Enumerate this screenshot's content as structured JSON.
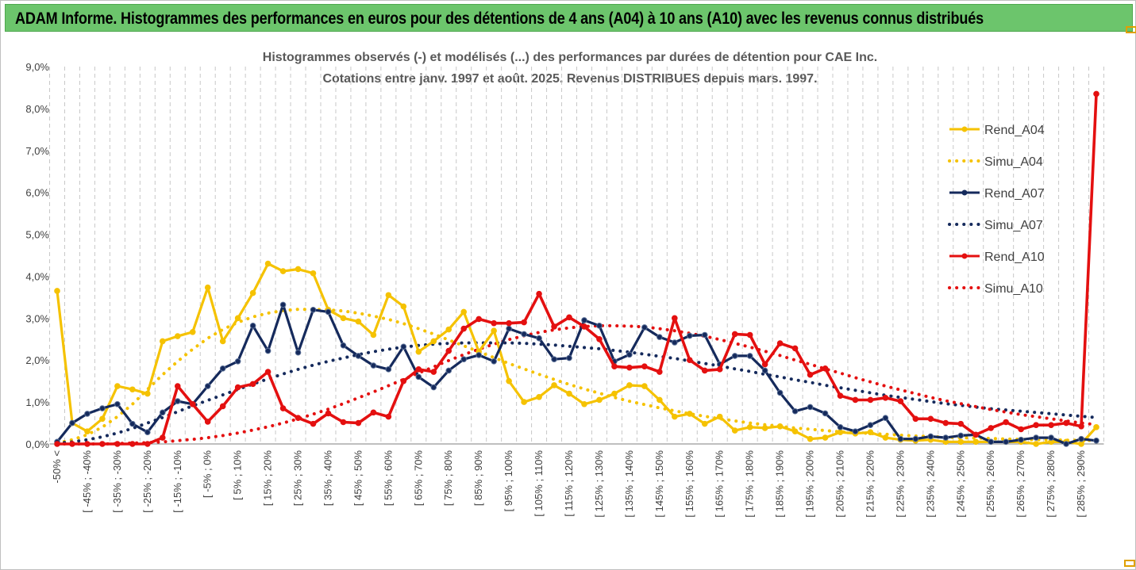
{
  "banner": {
    "title": "ADAM Informe. Histogrammes des performances en euros pour des détentions de 4 ans (A04) à 10 ans (A10) avec les revenus connus distribués"
  },
  "chart_data": {
    "type": "line",
    "title": "Histogrammes observés (-) et modélisés (...) des performances par durées de détention pour CAE Inc.",
    "subtitle": "Cotations entre janv. 1997 et août. 2025. Revenus DISTRIBUES depuis mars. 1997.",
    "y_ticks": [
      "0,0%",
      "1,0%",
      "2,0%",
      "3,0%",
      "4,0%",
      "5,0%",
      "6,0%",
      "7,0%",
      "8,0%",
      "9,0%"
    ],
    "ylim": [
      0,
      9
    ],
    "y_unit": "%",
    "grid": "vertical dashed",
    "legend_position": "right",
    "x_tick_labels": [
      "-50% <",
      "[ -45% ; -40%",
      "[ -35% ; -30%",
      "[ -25% ; -20%",
      "[ -15% ; -10%",
      "[ -5% ; 0%",
      "[ 5% ; 10%",
      "[ 15% ; 20%",
      "[ 25% ; 30%",
      "[ 35% ; 40%",
      "[ 45% ; 50%",
      "[ 55% ; 60%",
      "[ 65% ; 70%",
      "[ 75% ; 80%",
      "[ 85% ; 90%",
      "[ 95% ; 100%",
      "[ 105% ; 110%",
      "[ 115% ; 120%",
      "[ 125% ; 130%",
      "[ 135% ; 140%",
      "[ 145% ; 150%",
      "[ 155% ; 160%",
      "[ 165% ; 170%",
      "[ 175% ; 180%",
      "[ 185% ; 190%",
      "[ 195% ; 200%",
      "[ 205% ; 210%",
      "[ 215% ; 220%",
      "[ 225% ; 230%",
      "[ 235% ; 240%",
      "[ 245% ; 250%",
      "[ 255% ; 260%",
      "[ 265% ; 270%",
      "[ 275% ; 280%",
      "[ 285% ; 290%"
    ],
    "n_categories": 70,
    "series": [
      {
        "name": "Rend_A04",
        "color": "#f5c200",
        "style": "solid",
        "markers": true,
        "values": [
          3.65,
          0.5,
          0.3,
          0.6,
          1.38,
          1.3,
          1.2,
          2.45,
          2.57,
          2.67,
          3.73,
          2.45,
          3.0,
          3.6,
          4.3,
          4.12,
          4.17,
          4.07,
          3.2,
          3.0,
          2.92,
          2.6,
          3.55,
          3.28,
          2.2,
          2.45,
          2.73,
          3.15,
          2.2,
          2.7,
          1.5,
          1.0,
          1.12,
          1.4,
          1.2,
          0.95,
          1.05,
          1.2,
          1.4,
          1.38,
          1.05,
          0.65,
          0.72,
          0.48,
          0.65,
          0.32,
          0.4,
          0.38,
          0.42,
          0.3,
          0.12,
          0.15,
          0.28,
          0.25,
          0.28,
          0.15,
          0.1,
          0.08,
          0.1,
          0.05,
          0.05,
          0.05,
          0.05,
          0.05,
          0.05,
          0.0,
          0.05,
          0.05,
          0.0,
          0.4
        ]
      },
      {
        "name": "Simu_A04",
        "color": "#f5c200",
        "style": "dotted",
        "markers": false,
        "values": [
          0.02,
          0.1,
          0.22,
          0.4,
          0.65,
          0.95,
          1.3,
          1.65,
          1.97,
          2.26,
          2.52,
          2.73,
          2.9,
          3.03,
          3.12,
          3.18,
          3.21,
          3.21,
          3.2,
          3.17,
          3.12,
          3.05,
          2.97,
          2.87,
          2.75,
          2.62,
          2.48,
          2.34,
          2.2,
          2.06,
          1.92,
          1.79,
          1.66,
          1.54,
          1.42,
          1.31,
          1.21,
          1.11,
          1.02,
          0.94,
          0.86,
          0.79,
          0.72,
          0.66,
          0.6,
          0.55,
          0.5,
          0.46,
          0.42,
          0.38,
          0.35,
          0.32,
          0.29,
          0.27,
          0.25,
          0.23,
          0.21,
          0.19,
          0.18,
          0.16,
          0.15,
          0.14,
          0.13,
          0.12,
          0.11,
          0.1,
          0.1,
          0.09,
          0.09,
          0.08
        ]
      },
      {
        "name": "Rend_A07",
        "color": "#152a5c",
        "style": "solid",
        "markers": true,
        "values": [
          0.05,
          0.5,
          0.72,
          0.85,
          0.95,
          0.48,
          0.28,
          0.75,
          1.02,
          0.95,
          1.38,
          1.8,
          1.97,
          2.82,
          2.22,
          3.32,
          2.18,
          3.2,
          3.15,
          2.35,
          2.1,
          1.87,
          1.78,
          2.32,
          1.6,
          1.35,
          1.75,
          2.02,
          2.12,
          1.97,
          2.75,
          2.62,
          2.52,
          2.02,
          2.05,
          2.95,
          2.82,
          1.97,
          2.13,
          2.78,
          2.55,
          2.42,
          2.58,
          2.6,
          1.9,
          2.1,
          2.1,
          1.75,
          1.22,
          0.78,
          0.88,
          0.73,
          0.4,
          0.3,
          0.45,
          0.62,
          0.12,
          0.12,
          0.18,
          0.15,
          0.2,
          0.22,
          0.05,
          0.05,
          0.1,
          0.15,
          0.15,
          0.0,
          0.12,
          0.08
        ]
      },
      {
        "name": "Simu_A07",
        "color": "#152a5c",
        "style": "dotted",
        "markers": false,
        "values": [
          0.02,
          0.05,
          0.1,
          0.17,
          0.26,
          0.37,
          0.5,
          0.63,
          0.77,
          0.91,
          1.04,
          1.17,
          1.3,
          1.43,
          1.55,
          1.67,
          1.78,
          1.88,
          1.97,
          2.05,
          2.13,
          2.2,
          2.26,
          2.31,
          2.35,
          2.38,
          2.4,
          2.41,
          2.41,
          2.41,
          2.41,
          2.4,
          2.38,
          2.36,
          2.33,
          2.3,
          2.27,
          2.23,
          2.19,
          2.14,
          2.09,
          2.04,
          1.98,
          1.92,
          1.86,
          1.79,
          1.73,
          1.66,
          1.6,
          1.53,
          1.47,
          1.4,
          1.34,
          1.28,
          1.22,
          1.16,
          1.11,
          1.06,
          1.01,
          0.96,
          0.92,
          0.88,
          0.84,
          0.81,
          0.78,
          0.75,
          0.72,
          0.69,
          0.66,
          0.63
        ]
      },
      {
        "name": "Rend_A10",
        "color": "#e41010",
        "style": "solid",
        "markers": true,
        "values": [
          0.0,
          0.0,
          0.0,
          0.0,
          0.0,
          0.0,
          0.0,
          0.15,
          1.38,
          0.95,
          0.53,
          0.9,
          1.35,
          1.43,
          1.72,
          0.85,
          0.62,
          0.48,
          0.73,
          0.52,
          0.5,
          0.75,
          0.65,
          1.5,
          1.78,
          1.72,
          2.22,
          2.75,
          2.98,
          2.88,
          2.88,
          2.9,
          3.58,
          2.8,
          3.02,
          2.8,
          2.5,
          1.85,
          1.82,
          1.85,
          1.72,
          3.0,
          2.0,
          1.75,
          1.78,
          2.62,
          2.6,
          1.9,
          2.4,
          2.28,
          1.65,
          1.8,
          1.15,
          1.05,
          1.05,
          1.1,
          1.02,
          0.6,
          0.6,
          0.5,
          0.48,
          0.22,
          0.38,
          0.52,
          0.35,
          0.45,
          0.45,
          0.5,
          0.42,
          8.35
        ]
      },
      {
        "name": "Simu_A10",
        "color": "#e41010",
        "style": "dotted",
        "markers": false,
        "values": [
          0.0,
          0.0,
          0.0,
          0.0,
          0.01,
          0.02,
          0.03,
          0.05,
          0.08,
          0.11,
          0.15,
          0.2,
          0.26,
          0.33,
          0.41,
          0.5,
          0.6,
          0.71,
          0.83,
          0.96,
          1.1,
          1.24,
          1.39,
          1.54,
          1.69,
          1.84,
          1.99,
          2.13,
          2.26,
          2.38,
          2.49,
          2.58,
          2.66,
          2.72,
          2.77,
          2.8,
          2.82,
          2.82,
          2.81,
          2.79,
          2.75,
          2.7,
          2.64,
          2.57,
          2.49,
          2.4,
          2.31,
          2.21,
          2.11,
          2.0,
          1.9,
          1.79,
          1.69,
          1.58,
          1.48,
          1.38,
          1.29,
          1.2,
          1.11,
          1.03,
          0.96,
          0.89,
          0.82,
          0.76,
          0.7,
          0.65,
          0.6,
          0.55,
          0.5,
          0.46
        ]
      }
    ]
  }
}
